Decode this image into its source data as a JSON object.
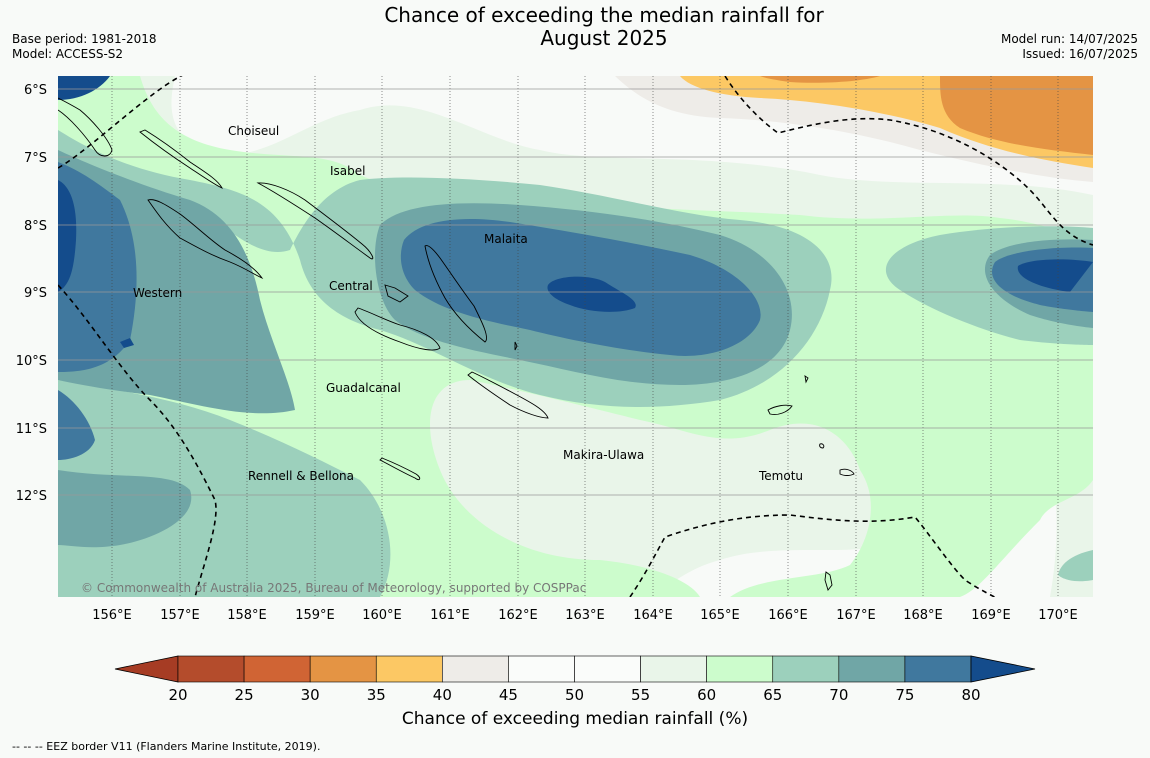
{
  "title_line1": "Chance of exceeding the median rainfall for",
  "title_line2": "August 2025",
  "base_period": "Base period: 1981-2018",
  "model": "Model: ACCESS-S2",
  "model_run": "Model run: 14/07/2025",
  "issued": "Issued: 16/07/2025",
  "copyright": "© Commonwealth of Australia 2025, Bureau of Meteorology, supported by COSPPac",
  "map": {
    "lon_ticks": [
      "156°E",
      "157°E",
      "158°E",
      "159°E",
      "160°E",
      "161°E",
      "162°E",
      "163°E",
      "164°E",
      "165°E",
      "166°E",
      "167°E",
      "168°E",
      "169°E",
      "170°E"
    ],
    "lat_ticks": [
      "6°S",
      "7°S",
      "8°S",
      "9°S",
      "10°S",
      "11°S",
      "12°S"
    ],
    "regions": [
      {
        "name": "Choiseul",
        "lon": 157.7,
        "lat": -6.6
      },
      {
        "name": "Isabel",
        "lon": 159.5,
        "lat": -7.2
      },
      {
        "name": "Malaita",
        "lon": 161.7,
        "lat": -8.2
      },
      {
        "name": "Western",
        "lon": 156.5,
        "lat": -9.0
      },
      {
        "name": "Central",
        "lon": 159.8,
        "lat": -8.9
      },
      {
        "name": "Guadalcanal",
        "lon": 159.7,
        "lat": -10.4
      },
      {
        "name": "Makira-Ulawa",
        "lon": 163.2,
        "lat": -11.4
      },
      {
        "name": "Temotu",
        "lon": 165.9,
        "lat": -11.7
      },
      {
        "name": "Rennell & Bellona",
        "lon": 158.8,
        "lat": -11.7
      }
    ],
    "colors": {
      "ocean_base": "#f8faf8",
      "c40_45": "#eeece8",
      "c55_60": "#e9f5e9",
      "c60_65": "#ccfccc",
      "c65_70": "#9cd0bc",
      "c70_75": "#70a6a6",
      "c75_80": "#40789e",
      "c80": "#144c8c",
      "c35_40": "#fcc864",
      "c30_35": "#e49444"
    }
  },
  "colorbar": {
    "title": "Chance of exceeding median rainfall (%)",
    "ticks": [
      "20",
      "25",
      "30",
      "35",
      "40",
      "45",
      "50",
      "55",
      "60",
      "65",
      "70",
      "75",
      "80"
    ],
    "colors": [
      "#a63c24",
      "#b44c2c",
      "#d06434",
      "#e49444",
      "#fcc864",
      "#eeece8",
      "#fafcfa",
      "#fafcfa",
      "#e9f5e9",
      "#ccfccc",
      "#9cd0bc",
      "#70a6a6",
      "#40789e",
      "#144c8c"
    ]
  },
  "footnote": "--  --  -- EEZ border V11 (Flanders Marine Institute, 2019)."
}
